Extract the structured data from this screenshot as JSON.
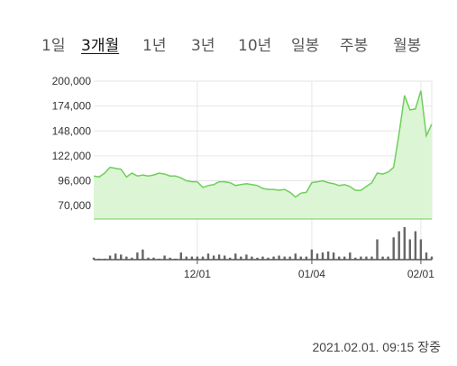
{
  "tabs": [
    {
      "label": "1일",
      "active": false
    },
    {
      "label": "3개월",
      "active": true
    },
    {
      "label": "1년",
      "active": false
    },
    {
      "label": "3년",
      "active": false
    },
    {
      "label": "10년",
      "active": false
    },
    {
      "label": "일봉",
      "active": false
    },
    {
      "label": "주봉",
      "active": false
    },
    {
      "label": "월봉",
      "active": false
    }
  ],
  "timestamp": "2021.02.01. 09:15 장중",
  "colors": {
    "line": "#6fcf5c",
    "fill": "#dcf5d4",
    "volume": "#666666",
    "grid": "#e6e6e6"
  },
  "chart_data": {
    "type": "area",
    "title": "",
    "xlabel": "",
    "ylabel": "",
    "y_ticks": [
      "200,000",
      "174,000",
      "148,000",
      "122,000",
      "96,000",
      "70,000"
    ],
    "ylim": [
      56000,
      200000
    ],
    "x_ticks": [
      "12/01",
      "01/04",
      "02/01"
    ],
    "n_points": 63,
    "x_tick_positions": [
      19,
      40,
      60
    ],
    "price": [
      101000,
      100000,
      104000,
      110000,
      109000,
      108000,
      100000,
      104000,
      101000,
      102000,
      101000,
      102000,
      104000,
      103000,
      101000,
      101000,
      99000,
      96000,
      95000,
      95000,
      89000,
      91000,
      92000,
      95000,
      95000,
      94000,
      91000,
      92000,
      93000,
      92000,
      91000,
      88000,
      87000,
      87000,
      86000,
      87000,
      84000,
      79000,
      83000,
      84000,
      94000,
      95000,
      96000,
      94000,
      93000,
      91000,
      92000,
      90000,
      86000,
      86000,
      90000,
      94000,
      104000,
      103000,
      105000,
      110000,
      145000,
      185000,
      170000,
      171000,
      190000,
      143000,
      155000
    ],
    "volume": [
      2,
      1,
      1,
      4,
      6,
      5,
      3,
      2,
      7,
      10,
      2,
      2,
      1,
      4,
      2,
      1,
      7,
      3,
      3,
      3,
      3,
      6,
      4,
      5,
      4,
      2,
      6,
      3,
      5,
      3,
      2,
      3,
      2,
      3,
      4,
      3,
      3,
      6,
      3,
      3,
      10,
      6,
      7,
      8,
      7,
      3,
      3,
      7,
      2,
      3,
      3,
      3,
      20,
      3,
      3,
      22,
      28,
      32,
      20,
      28,
      20,
      7,
      3
    ]
  }
}
